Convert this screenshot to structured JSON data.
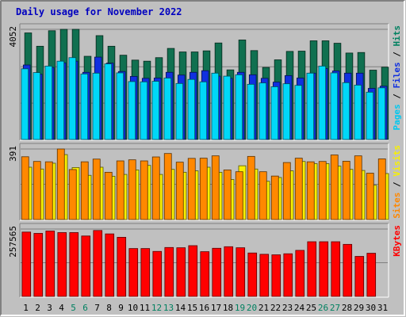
{
  "chart_data": {
    "type": "bar",
    "title": "Daily usage for November 2022",
    "days": [
      "1",
      "2",
      "3",
      "4",
      "5",
      "6",
      "7",
      "8",
      "9",
      "10",
      "11",
      "12",
      "13",
      "14",
      "15",
      "16",
      "17",
      "18",
      "19",
      "20",
      "21",
      "22",
      "23",
      "24",
      "25",
      "26",
      "27",
      "28",
      "29",
      "30",
      "31"
    ],
    "weekend_days": [
      "5",
      "6",
      "12",
      "13",
      "19",
      "20",
      "26",
      "27"
    ],
    "panels": [
      {
        "id": "hits",
        "max_label": "4052",
        "ylim": [
          0,
          4052
        ],
        "right_labels": [
          {
            "text": "Pages",
            "color": "#00c8f0"
          },
          {
            "text": " / ",
            "color": "#000000"
          },
          {
            "text": "Files",
            "color": "#1030e0"
          },
          {
            "text": " / ",
            "color": "#000000"
          },
          {
            "text": "Hits",
            "color": "#008060"
          }
        ],
        "series": [
          {
            "name": "Hits",
            "color": "#107050",
            "values": [
              3920,
              3430,
              4000,
              4052,
              4052,
              3060,
              3820,
              3430,
              3100,
              2920,
              2880,
              3010,
              3350,
              3220,
              3220,
              3260,
              3550,
              2560,
              3660,
              3270,
              2650,
              2930,
              3240,
              3250,
              3630,
              3630,
              3540,
              3180,
              3200,
              2550,
              2660
            ]
          },
          {
            "name": "Files",
            "color": "#1030e0",
            "values": [
              2740,
              2400,
              2650,
              2820,
              2880,
              2470,
              3030,
              2810,
              2500,
              2320,
              2250,
              2260,
              2470,
              2370,
              2470,
              2530,
              2330,
              2250,
              2470,
              2380,
              2250,
              2110,
              2350,
              2260,
              2440,
              2610,
              2520,
              2440,
              2440,
              1880,
              1960
            ]
          },
          {
            "name": "Pages",
            "color": "#00d8f8",
            "values": [
              2600,
              2460,
              2700,
              2880,
              3010,
              2410,
              2440,
              2780,
              2450,
              2130,
              2120,
              2140,
              2260,
              2060,
              2210,
              2120,
              2440,
              2330,
              2380,
              2030,
              2080,
              1940,
              2050,
              1990,
              2440,
              2700,
              2450,
              2090,
              2000,
              1740,
              1900
            ]
          }
        ]
      },
      {
        "id": "visits",
        "max_label": "391",
        "ylim": [
          0,
          391
        ],
        "right_labels": [
          {
            "text": "Sites",
            "color": "#ff8800"
          },
          {
            "text": " / ",
            "color": "#000000"
          },
          {
            "text": "Visits",
            "color": "#f8f000"
          }
        ],
        "series": [
          {
            "name": "Visits",
            "color": "#f8f000",
            "values": [
              290,
              280,
              312,
              360,
              288,
              245,
              290,
              240,
              250,
              275,
              300,
              250,
              278,
              262,
              270,
              290,
              262,
              222,
              298,
              280,
              212,
              233,
              270,
              322,
              310,
              310,
              296,
              278,
              272,
              190,
              255
            ]
          },
          {
            "name": "Sites",
            "color": "#ff8800",
            "values": [
              348,
              322,
              320,
              391,
              277,
              320,
              335,
              262,
              325,
              331,
              325,
              347,
              366,
              318,
              339,
              340,
              353,
              275,
              265,
              350,
              265,
              241,
              316,
              340,
              320,
              322,
              358,
              323,
              353,
              257,
              336
            ]
          }
        ]
      },
      {
        "id": "kbytes",
        "max_label": "257565",
        "ylim": [
          0,
          257565
        ],
        "right_labels": [
          {
            "text": "KBytes",
            "color": "#ff0000"
          }
        ],
        "series": [
          {
            "name": "KBytes",
            "color": "#ff0000",
            "values": [
              246000,
              241000,
              250000,
              244000,
              244000,
              231000,
              252000,
              239000,
              226000,
              183000,
              183000,
              172000,
              187000,
              186000,
              194000,
              171000,
              184000,
              190000,
              186000,
              166000,
              161000,
              159000,
              163000,
              176000,
              209000,
              209000,
              209000,
              199000,
              153000,
              165000,
              0
            ]
          }
        ]
      }
    ]
  }
}
